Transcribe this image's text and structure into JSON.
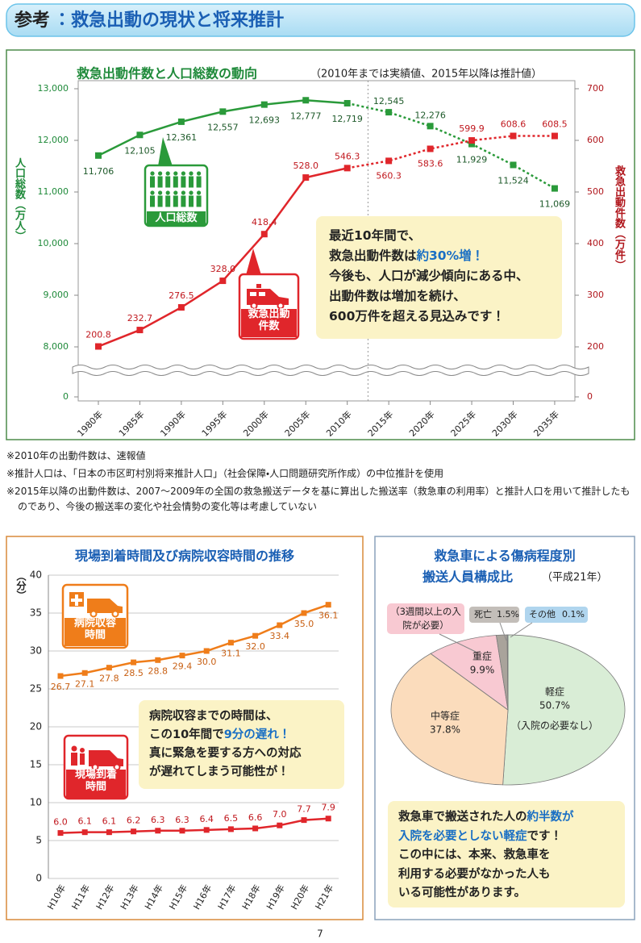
{
  "header": {
    "label": "参考",
    "title": "：救急出動の現状と将来推計"
  },
  "chart_data": [
    {
      "type": "line",
      "title": "救急出動件数と人口総数の動向",
      "subtitle": "（2010年までは実績値、2015年以降は推計値）",
      "categories": [
        "1980年",
        "1985年",
        "1990年",
        "1995年",
        "2000年",
        "2005年",
        "2010年",
        "2015年",
        "2020年",
        "2025年",
        "2030年",
        "2035年"
      ],
      "y_label": "人口総数（万人）",
      "y2_label": "救急出動件数（万件）",
      "ylim": [
        7500,
        13000
      ],
      "yticks": [
        0,
        {
          "value": 8000,
          "label": "8,000"
        },
        {
          "value": 9000,
          "label": "9,000"
        },
        {
          "value": 10000,
          "label": "10,000"
        },
        {
          "value": 11000,
          "label": "11,000"
        },
        {
          "value": 12000,
          "label": "12,000"
        },
        {
          "value": 13000,
          "label": "13,000"
        }
      ],
      "y2lim": [
        150,
        700
      ],
      "y2ticks": [
        0,
        200,
        300,
        400,
        500,
        600,
        700
      ],
      "axis_break": true,
      "dashed_from": 6,
      "series": [
        {
          "name": "人口総数",
          "color": "#2a9a3a",
          "values": [
            11706,
            12105,
            12361,
            12557,
            12693,
            12777,
            12719,
            12545,
            12276,
            11929,
            11524,
            11069
          ],
          "value_labels": [
            "11,706",
            "12,105",
            "12,361",
            "12,557",
            "12,693",
            "12,777",
            "12,719",
            "12,545",
            "12,276",
            "11,929",
            "11,524",
            "11,069"
          ]
        },
        {
          "name": "救急出動件数",
          "color": "#e0262b",
          "axis": "y2",
          "values": [
            200.8,
            232.7,
            276.5,
            328.0,
            418.4,
            528.0,
            546.3,
            560.3,
            583.6,
            599.9,
            608.6,
            608.5
          ],
          "value_labels": [
            "200.8",
            "232.7",
            "276.5",
            "328.0",
            "418.4",
            "528.0",
            "546.3",
            "560.3",
            "583.6",
            "599.9",
            "608.6",
            "608.5"
          ]
        }
      ],
      "annotation": [
        [
          {
            "text": "最近10年間で、"
          }
        ],
        [
          {
            "text": "救急出動件数は"
          },
          {
            "text": "約30%増！",
            "em": true
          }
        ],
        [
          {
            "text": "今後も、人口が減少傾向にある中、"
          }
        ],
        [
          {
            "text": "出動件数は増加を続け、"
          }
        ],
        [
          {
            "text": "600万件を超える見込みです！"
          }
        ]
      ]
    },
    {
      "type": "line",
      "title": "現場到着時間及び病院収容時間の推移",
      "y_label": "（分）",
      "categories": [
        "H10年",
        "H11年",
        "H12年",
        "H13年",
        "H14年",
        "H15年",
        "H16年",
        "H17年",
        "H18年",
        "H19年",
        "H20年",
        "H21年"
      ],
      "ylim": [
        0,
        40
      ],
      "yticks": [
        0,
        5,
        10,
        15,
        20,
        25,
        30,
        35,
        40
      ],
      "grid": true,
      "series": [
        {
          "name": "病院収容時間",
          "color": "#ef7d1a",
          "values": [
            26.7,
            27.1,
            27.8,
            28.5,
            28.8,
            29.4,
            30.0,
            31.1,
            32.0,
            33.4,
            35.0,
            36.1
          ],
          "value_labels": [
            "26.7",
            "27.1",
            "27.8",
            "28.5",
            "28.8",
            "29.4",
            "30.0",
            "31.1",
            "32.0",
            "33.4",
            "35.0",
            "36.1"
          ]
        },
        {
          "name": "現場到着時間",
          "color": "#e0262b",
          "values": [
            6.0,
            6.1,
            6.1,
            6.2,
            6.3,
            6.3,
            6.4,
            6.5,
            6.6,
            7.0,
            7.7,
            7.9
          ],
          "value_labels": [
            "6.0",
            "6.1",
            "6.1",
            "6.2",
            "6.3",
            "6.3",
            "6.4",
            "6.5",
            "6.6",
            "7.0",
            "7.7",
            "7.9"
          ]
        }
      ],
      "annotation": [
        [
          {
            "text": "病院収容までの時間は、"
          }
        ],
        [
          {
            "text": "この10年間で"
          },
          {
            "text": "9分の遅れ！",
            "em": true
          }
        ],
        [
          {
            "text": "真に緊急を要する方への対応"
          }
        ],
        [
          {
            "text": "が遅れてしまう可能性が！"
          }
        ]
      ]
    },
    {
      "type": "pie",
      "title": [
        "救急車による傷病程度別",
        "搬送人員構成比"
      ],
      "subtitle": "（平成21年）",
      "categories": [
        "軽症",
        "中等症",
        "重症",
        "死亡",
        "その他"
      ],
      "values": [
        50.7,
        37.8,
        9.9,
        1.5,
        0.1
      ],
      "value_labels": [
        "50.7%",
        "37.8%",
        "9.9%",
        "1.5%",
        "0.1%"
      ],
      "colors": [
        "#d9edd6",
        "#fbdcbc",
        "#f8c9d2",
        "#a9a39b",
        "#9ccaea"
      ],
      "annotations": [
        "（入院の必要なし）",
        "（3週間以上の入院が必要）"
      ],
      "annotation": [
        [
          {
            "text": "救急車で搬送された人の"
          },
          {
            "text": "約半数が",
            "em": true
          }
        ],
        [
          {
            "text": "入院を必要としない軽症",
            "em": true
          },
          {
            "text": "です！"
          }
        ],
        [
          {
            "text": "この中には、本来、救急車を"
          }
        ],
        [
          {
            "text": "利用する必要がなかった人も"
          }
        ],
        [
          {
            "text": "いる可能性があります。"
          }
        ]
      ]
    }
  ],
  "notes": [
    "※2010年の出動件数は、速報値",
    "※推計人口は、「日本の市区町村別将来推計人口」（社会保障・人口問題研究所作成）の中位推計を使用",
    "※2015年以降の出動件数は、2007～2009年の全国の救急搬送データを基に算出した搬送率（救急車の利用率）と推計人口を用いて推計したものであり、今後の搬送率の変化や社会情勢の変化等は考慮していない"
  ],
  "page_number": "7"
}
